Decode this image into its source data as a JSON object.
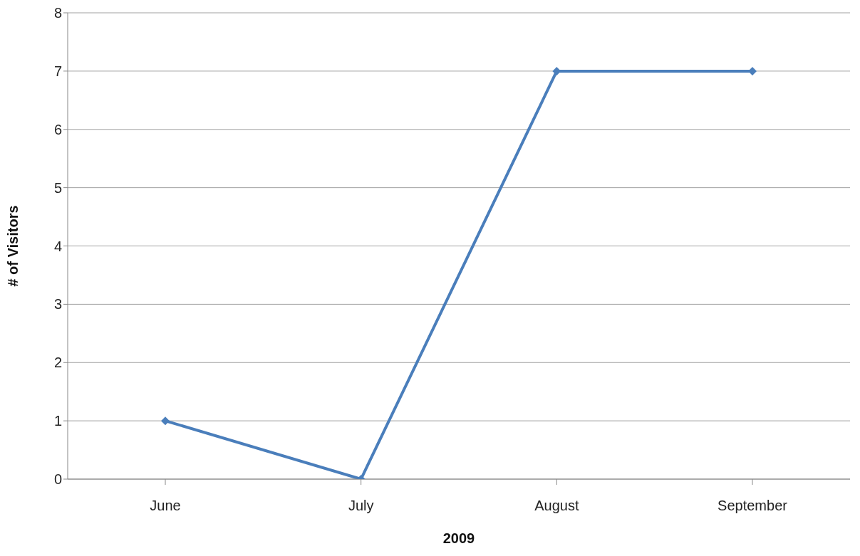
{
  "chart_data": {
    "type": "line",
    "xlabel": "2009",
    "ylabel": "# of Visitors",
    "categories": [
      "June",
      "July",
      "August",
      "September"
    ],
    "series": [
      {
        "color": "#4a7ebb",
        "values": [
          1,
          0,
          7,
          7
        ]
      }
    ],
    "ylim": [
      0,
      8
    ],
    "yticks": [
      0,
      1,
      2,
      3,
      4,
      5,
      6,
      7,
      8
    ],
    "grid": "y",
    "marker": "diamond",
    "line_style": "solid"
  }
}
